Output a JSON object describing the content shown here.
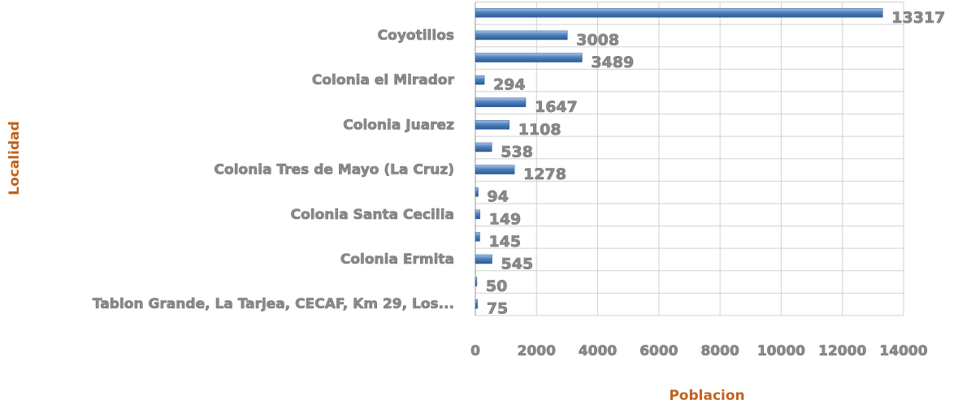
{
  "chart_data": {
    "type": "bar",
    "orientation": "horizontal",
    "categories": [
      null,
      "Coyotillos",
      null,
      "Colonia el Mirador",
      null,
      "Colonia Juarez",
      null,
      "Colonia Tres de Mayo (La Cruz)",
      null,
      "Colonia Santa Cecilia",
      null,
      "Colonia Ermita",
      null,
      "Tablon Grande, La Tarjea, CECAF, Km 29, Los..."
    ],
    "values": [
      13317,
      3008,
      3489,
      294,
      1647,
      1108,
      538,
      1278,
      94,
      149,
      145,
      545,
      50,
      75
    ],
    "color": "#4f81bd",
    "xlim": [
      0,
      14000
    ],
    "xticks": [
      0,
      2000,
      4000,
      6000,
      8000,
      10000,
      12000,
      14000
    ],
    "xlabel": "Poblacion",
    "ylabel": "Localidad",
    "grid": true
  }
}
